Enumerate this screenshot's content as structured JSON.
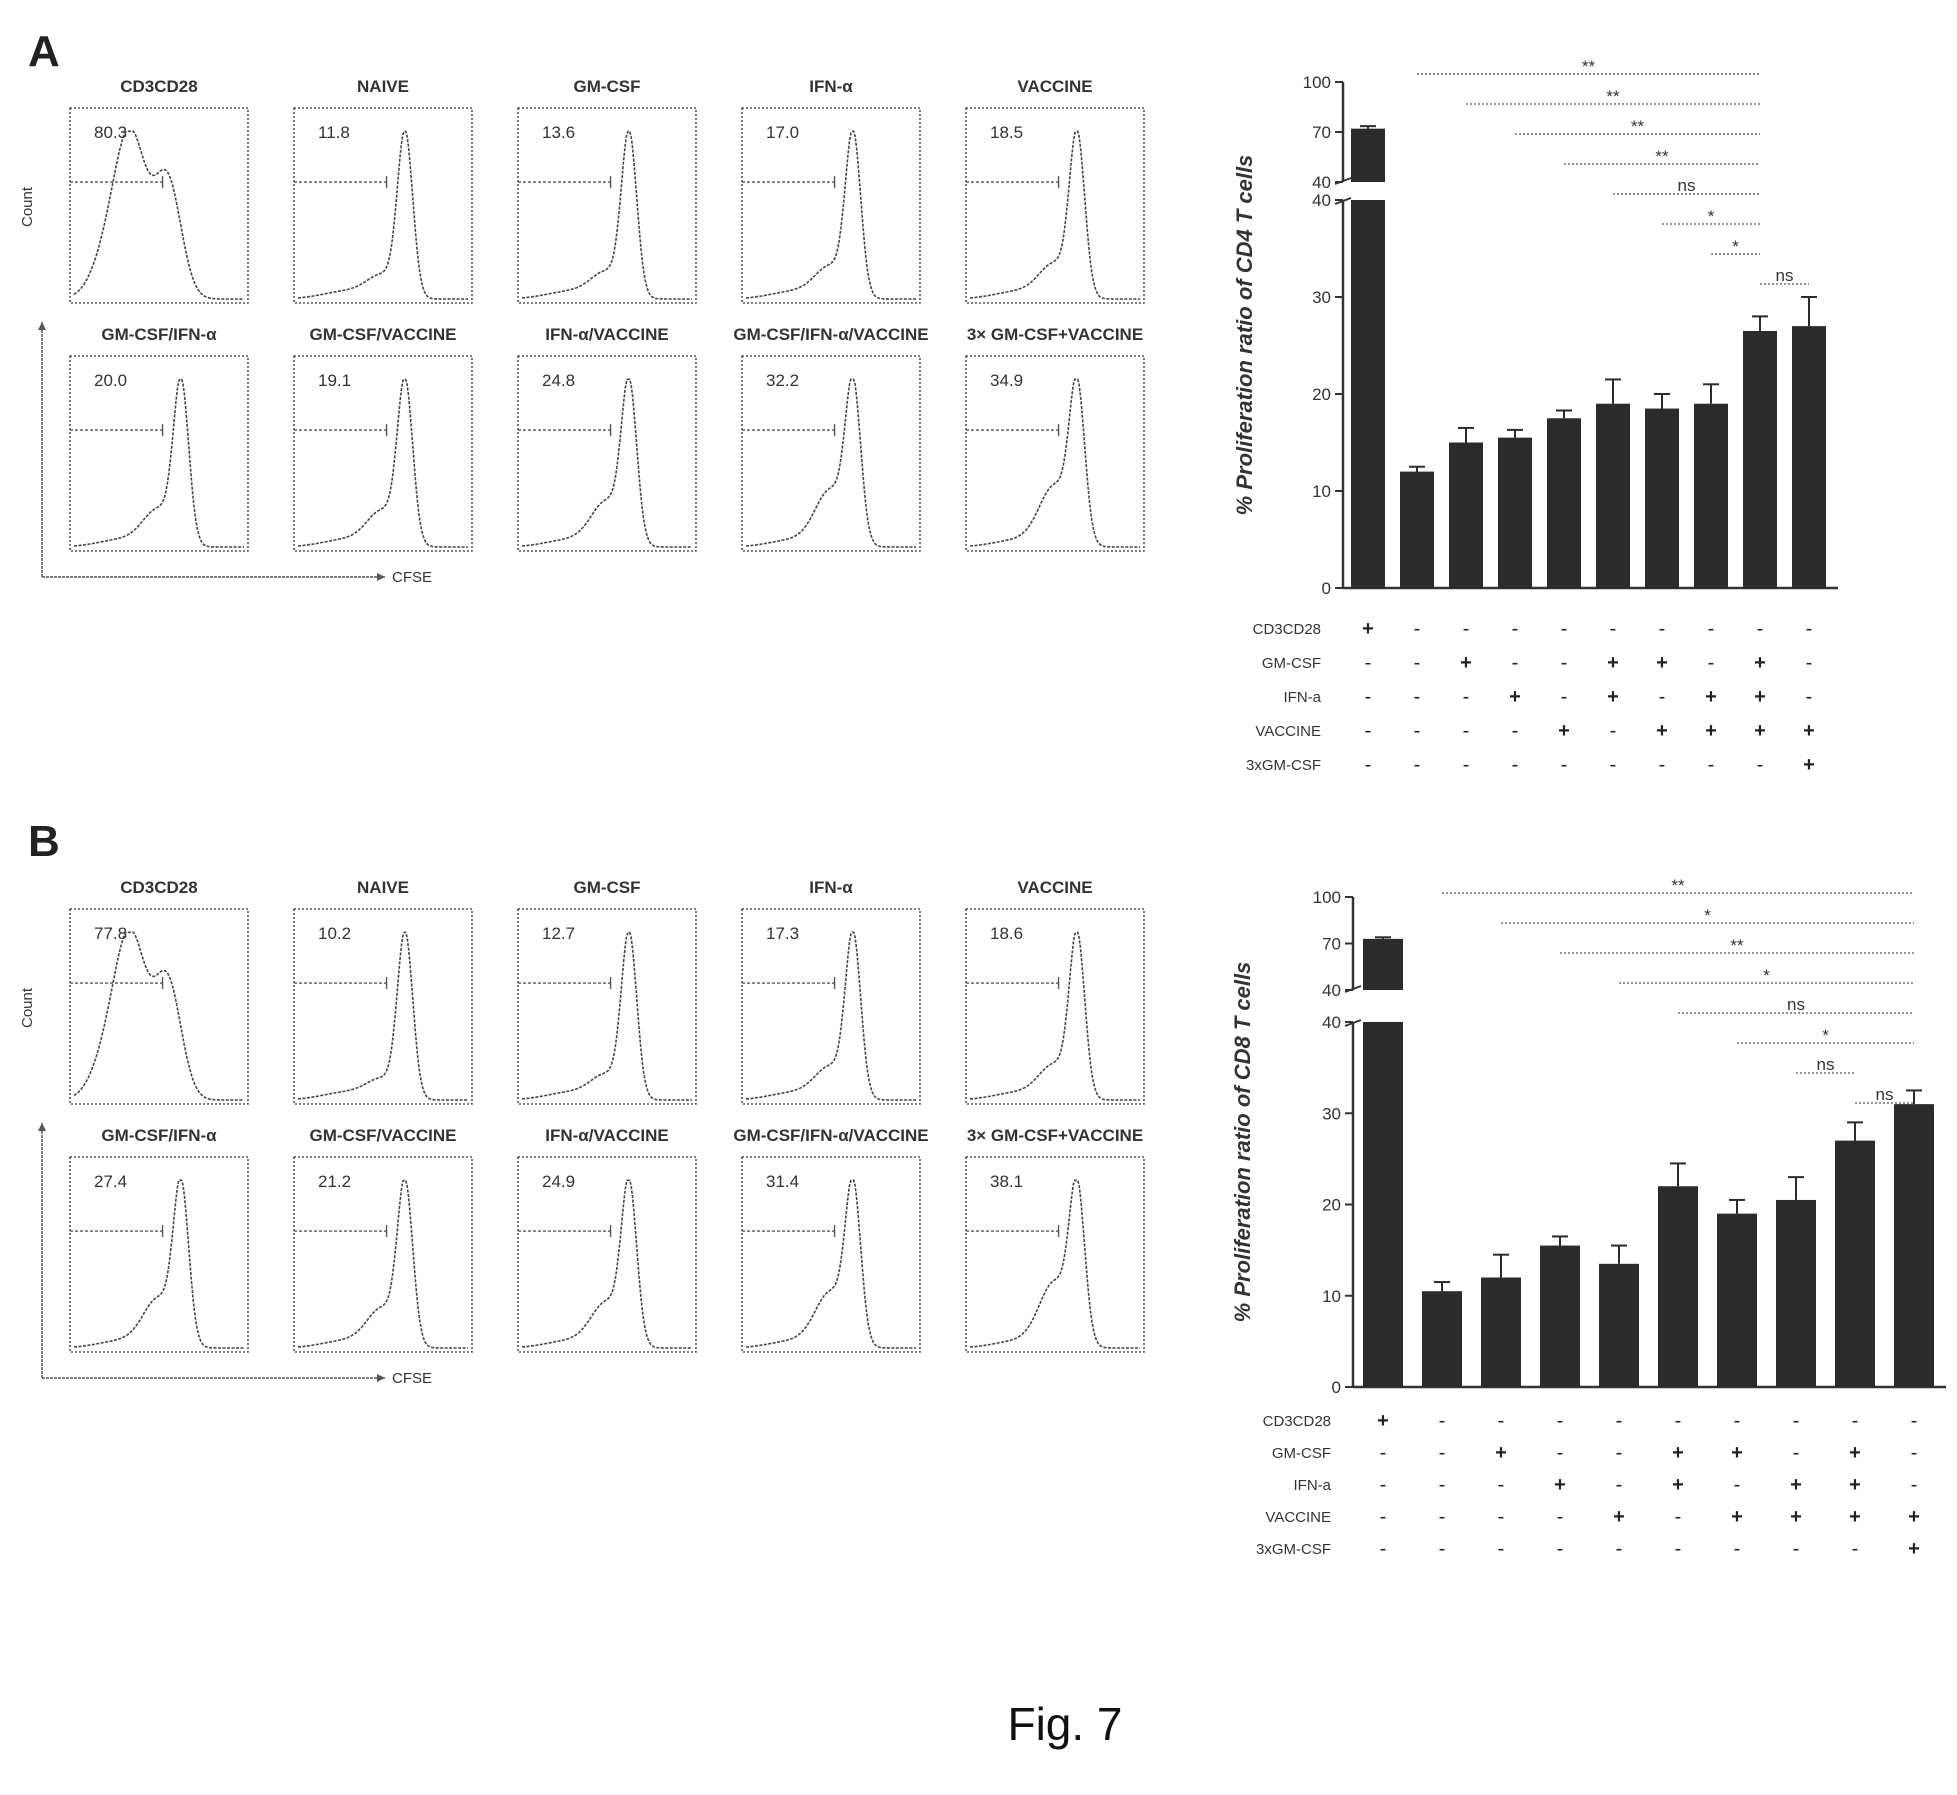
{
  "figure": {
    "caption": "Fig. 7"
  },
  "chart_data": [
    {
      "type": "histogram-grid",
      "panel": "A",
      "xlabel": "CFSE",
      "ylabel": "Count",
      "panels": [
        {
          "name": "CD3CD28",
          "value": "80.3"
        },
        {
          "name": "NAIVE",
          "value": "11.8"
        },
        {
          "name": "GM-CSF",
          "value": "13.6"
        },
        {
          "name": "IFN-α",
          "value": "17.0"
        },
        {
          "name": "VACCINE",
          "value": "18.5"
        },
        {
          "name": "GM-CSF/IFN-α",
          "value": "20.0"
        },
        {
          "name": "GM-CSF/VACCINE",
          "value": "19.1"
        },
        {
          "name": "IFN-α/VACCINE",
          "value": "24.8"
        },
        {
          "name": "GM-CSF/IFN-α/VACCINE",
          "value": "32.2"
        },
        {
          "name": "3× GM-CSF+VACCINE",
          "value": "34.9"
        }
      ]
    },
    {
      "type": "bar",
      "panel": "A",
      "ylabel": "% Proliferation ratio of CD4 T cells",
      "upper_ticks": [
        "100",
        "70",
        "40"
      ],
      "lower_ticks": [
        "40",
        "30",
        "20",
        "10",
        "0"
      ],
      "values": [
        72,
        12,
        15,
        15.5,
        17.5,
        19,
        18.5,
        19,
        26.5,
        27
      ],
      "errors": [
        1.5,
        0.5,
        1.5,
        0.8,
        0.8,
        2.5,
        1.5,
        2,
        1.5,
        3
      ],
      "significance": [
        {
          "label": "**",
          "from": 2,
          "to": 9
        },
        {
          "label": "**",
          "from": 3,
          "to": 9
        },
        {
          "label": "**",
          "from": 4,
          "to": 9
        },
        {
          "label": "**",
          "from": 5,
          "to": 9
        },
        {
          "label": "ns",
          "from": 6,
          "to": 9
        },
        {
          "label": "*",
          "from": 7,
          "to": 9
        },
        {
          "label": "*",
          "from": 8,
          "to": 9
        },
        {
          "label": "ns",
          "from": 9,
          "to": 10
        }
      ],
      "treatment_rows": [
        {
          "label": "CD3CD28",
          "marks": [
            "+",
            "-",
            "-",
            "-",
            "-",
            "-",
            "-",
            "-",
            "-",
            "-"
          ]
        },
        {
          "label": "GM-CSF",
          "marks": [
            "-",
            "-",
            "+",
            "-",
            "-",
            "+",
            "+",
            "-",
            "+",
            "-"
          ]
        },
        {
          "label": "IFN-a",
          "marks": [
            "-",
            "-",
            "-",
            "+",
            "-",
            "+",
            "-",
            "+",
            "+",
            "-"
          ]
        },
        {
          "label": "VACCINE",
          "marks": [
            "-",
            "-",
            "-",
            "-",
            "+",
            "-",
            "+",
            "+",
            "+",
            "+"
          ]
        },
        {
          "label": "3xGM-CSF",
          "marks": [
            "-",
            "-",
            "-",
            "-",
            "-",
            "-",
            "-",
            "-",
            "-",
            "+"
          ]
        }
      ]
    },
    {
      "type": "histogram-grid",
      "panel": "B",
      "xlabel": "CFSE",
      "ylabel": "Count",
      "panels": [
        {
          "name": "CD3CD28",
          "value": "77.8"
        },
        {
          "name": "NAIVE",
          "value": "10.2"
        },
        {
          "name": "GM-CSF",
          "value": "12.7"
        },
        {
          "name": "IFN-α",
          "value": "17.3"
        },
        {
          "name": "VACCINE",
          "value": "18.6"
        },
        {
          "name": "GM-CSF/IFN-α",
          "value": "27.4"
        },
        {
          "name": "GM-CSF/VACCINE",
          "value": "21.2"
        },
        {
          "name": "IFN-α/VACCINE",
          "value": "24.9"
        },
        {
          "name": "GM-CSF/IFN-α/VACCINE",
          "value": "31.4"
        },
        {
          "name": "3× GM-CSF+VACCINE",
          "value": "38.1"
        }
      ]
    },
    {
      "type": "bar",
      "panel": "B",
      "ylabel": "% Proliferation ratio of CD8 T cells",
      "upper_ticks": [
        "100",
        "70",
        "40"
      ],
      "lower_ticks": [
        "40",
        "30",
        "20",
        "10",
        "0"
      ],
      "values": [
        73,
        10.5,
        12,
        15.5,
        13.5,
        22,
        19,
        20.5,
        27,
        31
      ],
      "errors": [
        1,
        1,
        2.5,
        1,
        2,
        2.5,
        1.5,
        2.5,
        2,
        1.5
      ],
      "significance": [
        {
          "label": "**",
          "from": 2,
          "to": 10
        },
        {
          "label": "*",
          "from": 3,
          "to": 10
        },
        {
          "label": "**",
          "from": 4,
          "to": 10
        },
        {
          "label": "*",
          "from": 5,
          "to": 10
        },
        {
          "label": "ns",
          "from": 6,
          "to": 10
        },
        {
          "label": "*",
          "from": 7,
          "to": 10
        },
        {
          "label": "ns",
          "from": 8,
          "to": 9
        },
        {
          "label": "ns",
          "from": 9,
          "to": 10
        }
      ],
      "treatment_rows": [
        {
          "label": "CD3CD28",
          "marks": [
            "+",
            "-",
            "-",
            "-",
            "-",
            "-",
            "-",
            "-",
            "-",
            "-"
          ]
        },
        {
          "label": "GM-CSF",
          "marks": [
            "-",
            "-",
            "+",
            "-",
            "-",
            "+",
            "+",
            "-",
            "+",
            "-"
          ]
        },
        {
          "label": "IFN-a",
          "marks": [
            "-",
            "-",
            "-",
            "+",
            "-",
            "+",
            "-",
            "+",
            "+",
            "-"
          ]
        },
        {
          "label": "VACCINE",
          "marks": [
            "-",
            "-",
            "-",
            "-",
            "+",
            "-",
            "+",
            "+",
            "+",
            "+"
          ]
        },
        {
          "label": "3xGM-CSF",
          "marks": [
            "-",
            "-",
            "-",
            "-",
            "-",
            "-",
            "-",
            "-",
            "-",
            "+"
          ]
        }
      ]
    }
  ]
}
